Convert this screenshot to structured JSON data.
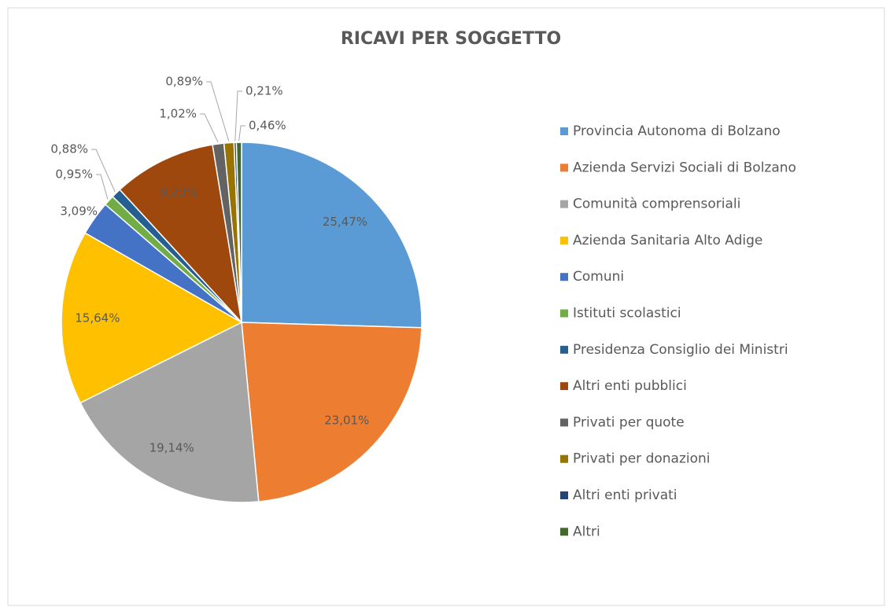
{
  "chart_data": {
    "type": "pie",
    "title": "RICAVI PER SOGGETTO",
    "categories": [
      "Provincia Autonoma di Bolzano",
      "Azienda Servizi Sociali di Bolzano",
      "Comunità comprensoriali",
      "Azienda Sanitaria Alto Adige",
      "Comuni",
      "Istituti scolastici",
      "Presidenza Consiglio dei Ministri",
      "Altri enti pubblici",
      "Privati per quote",
      "Privati per donazioni",
      "Altri enti privati",
      "Altri"
    ],
    "values": [
      25.47,
      23.01,
      19.14,
      15.64,
      3.09,
      0.95,
      0.88,
      9.23,
      1.02,
      0.89,
      0.21,
      0.46
    ],
    "value_labels": [
      "25,47%",
      "23,01%",
      "19,14%",
      "15,64%",
      "3,09%",
      "0,95%",
      "0,88%",
      "9,23%",
      "1,02%",
      "0,89%",
      "0,21%",
      "0,46%"
    ],
    "colors": [
      "#5b9bd5",
      "#ed7d31",
      "#a5a5a5",
      "#ffc000",
      "#4472c4",
      "#70ad47",
      "#255e91",
      "#9e480e",
      "#636363",
      "#997300",
      "#264478",
      "#43682b"
    ],
    "legend": "right"
  }
}
